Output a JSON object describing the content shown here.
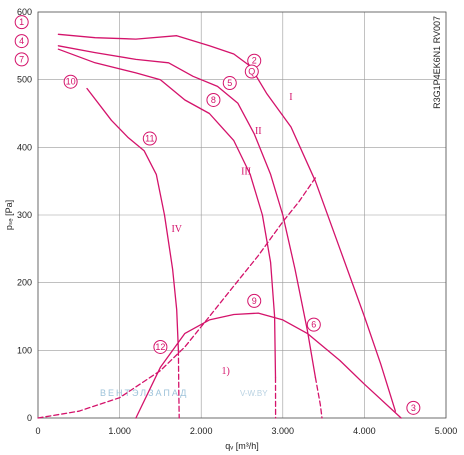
{
  "chart_data": {
    "type": "line",
    "xlabel": "qᵥ [m³/h]",
    "ylabel": "pₛₑ [Pa]",
    "xlim": [
      0,
      5000
    ],
    "ylim": [
      0,
      600
    ],
    "x_ticks": [
      0,
      1000,
      2000,
      3000,
      4000,
      5000
    ],
    "x_tick_labels": [
      "0",
      "1.000",
      "2.000",
      "3.000",
      "4.000",
      "5.000"
    ],
    "y_ticks": [
      0,
      100,
      200,
      300,
      400,
      500,
      600
    ],
    "y_tick_labels": [
      "0",
      "100",
      "200",
      "300",
      "400",
      "500",
      "600"
    ],
    "grid": true,
    "model_code": "R3G1P4EK6N1 RV007",
    "watermark": "ВЕНТЭЛЗАПАД",
    "watermark_site": "V-W.BY",
    "series": [
      {
        "id": "I",
        "style": "solid",
        "points": [
          [
            250,
            567
          ],
          [
            700,
            562
          ],
          [
            1200,
            560
          ],
          [
            1700,
            565
          ],
          [
            2100,
            550
          ],
          [
            2400,
            538
          ],
          [
            2600,
            520
          ],
          [
            2800,
            480
          ],
          [
            3100,
            430
          ],
          [
            3400,
            350
          ],
          [
            3700,
            250
          ],
          [
            4000,
            150
          ],
          [
            4200,
            80
          ],
          [
            4380,
            10
          ]
        ]
      },
      {
        "id": "II",
        "style": "solid",
        "points": [
          [
            250,
            550
          ],
          [
            700,
            540
          ],
          [
            1200,
            530
          ],
          [
            1600,
            525
          ],
          [
            1900,
            505
          ],
          [
            2200,
            490
          ],
          [
            2450,
            465
          ],
          [
            2650,
            420
          ],
          [
            2850,
            360
          ],
          [
            3000,
            300
          ],
          [
            3150,
            220
          ],
          [
            3300,
            130
          ],
          [
            3400,
            60
          ]
        ]
      },
      {
        "id": "II-ext",
        "style": "dashed",
        "points": [
          [
            3400,
            60
          ],
          [
            3460,
            20
          ],
          [
            3480,
            0
          ]
        ]
      },
      {
        "id": "III",
        "style": "solid",
        "points": [
          [
            250,
            545
          ],
          [
            700,
            525
          ],
          [
            1200,
            510
          ],
          [
            1500,
            500
          ],
          [
            1800,
            470
          ],
          [
            2100,
            450
          ],
          [
            2400,
            410
          ],
          [
            2600,
            360
          ],
          [
            2750,
            300
          ],
          [
            2850,
            230
          ],
          [
            2900,
            150
          ],
          [
            2910,
            60
          ]
        ]
      },
      {
        "id": "III-ext",
        "style": "dashed",
        "points": [
          [
            2910,
            60
          ],
          [
            2912,
            0
          ]
        ]
      },
      {
        "id": "IV",
        "style": "solid",
        "points": [
          [
            600,
            487
          ],
          [
            900,
            440
          ],
          [
            1100,
            415
          ],
          [
            1300,
            395
          ],
          [
            1450,
            360
          ],
          [
            1550,
            300
          ],
          [
            1650,
            220
          ],
          [
            1700,
            160
          ],
          [
            1720,
            100
          ]
        ]
      },
      {
        "id": "IV-ext",
        "style": "dashed",
        "points": [
          [
            1720,
            100
          ],
          [
            1725,
            40
          ],
          [
            1730,
            0
          ]
        ]
      },
      {
        "id": "pressure-parabola",
        "style": "solid",
        "points": [
          [
            1200,
            0
          ],
          [
            1500,
            75
          ],
          [
            1800,
            125
          ],
          [
            2100,
            145
          ],
          [
            2400,
            153
          ],
          [
            2700,
            155
          ],
          [
            3000,
            145
          ],
          [
            3300,
            125
          ],
          [
            3700,
            85
          ],
          [
            4000,
            50
          ],
          [
            4450,
            0
          ]
        ]
      },
      {
        "id": "system-curve",
        "style": "dashed",
        "points": [
          [
            0,
            0
          ],
          [
            500,
            10
          ],
          [
            1000,
            30
          ],
          [
            1500,
            70
          ],
          [
            1800,
            105
          ],
          [
            2100,
            150
          ],
          [
            2400,
            195
          ],
          [
            2700,
            240
          ],
          [
            3000,
            290
          ],
          [
            3200,
            320
          ],
          [
            3400,
            355
          ]
        ]
      }
    ],
    "curve_labels": [
      {
        "text": "I",
        "x": 3100,
        "y": 470
      },
      {
        "text": "II",
        "x": 2700,
        "y": 420
      },
      {
        "text": "III",
        "x": 2550,
        "y": 360
      },
      {
        "text": "IV",
        "x": 1700,
        "y": 275
      },
      {
        "text": "1)",
        "x": 2300,
        "y": 65
      }
    ],
    "point_markers": [
      {
        "text": "1",
        "x": -200,
        "y": 585
      },
      {
        "text": "4",
        "x": -200,
        "y": 557
      },
      {
        "text": "7",
        "x": -200,
        "y": 530
      },
      {
        "text": "10",
        "x": 400,
        "y": 497
      },
      {
        "text": "11",
        "x": 1370,
        "y": 413
      },
      {
        "text": "12",
        "x": 1500,
        "y": 105
      },
      {
        "text": "8",
        "x": 2150,
        "y": 470
      },
      {
        "text": "5",
        "x": 2350,
        "y": 495
      },
      {
        "text": "2",
        "x": 2650,
        "y": 528
      },
      {
        "text": "9",
        "x": 2650,
        "y": 173
      },
      {
        "text": "6",
        "x": 3380,
        "y": 138
      },
      {
        "text": "3",
        "x": 4600,
        "y": 15
      },
      {
        "text": "Q",
        "x": 2620,
        "y": 512
      }
    ]
  }
}
